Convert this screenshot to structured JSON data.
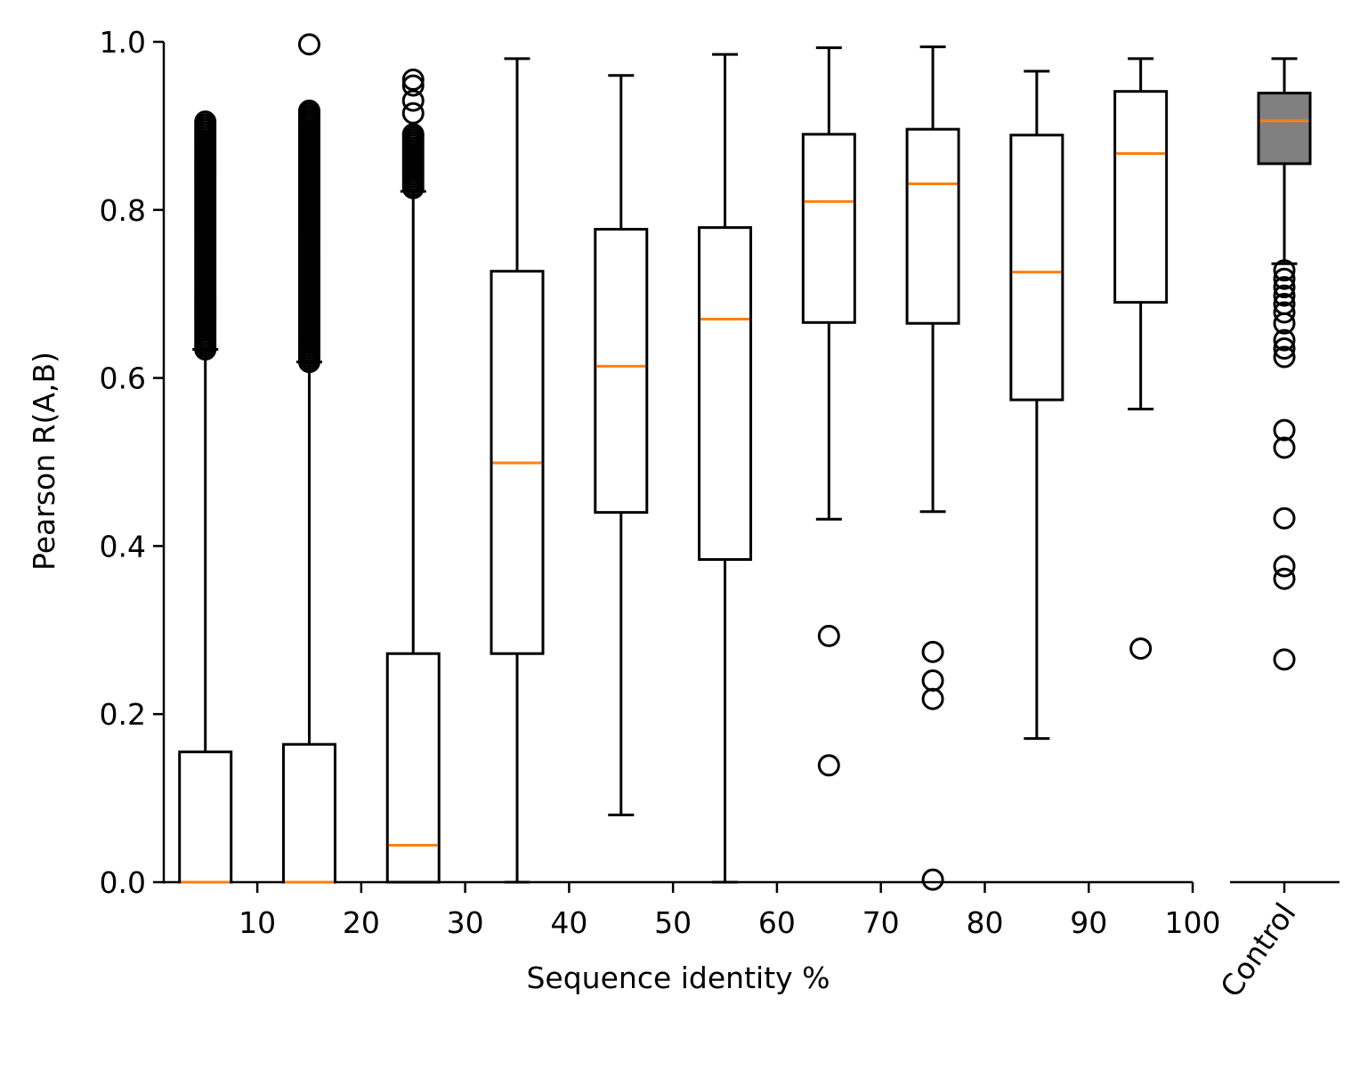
{
  "chart_data": [
    {
      "type": "box",
      "xlabel": "Sequence identity %",
      "ylabel": "Pearson R(A,B)",
      "ylim": [
        0,
        1.0
      ],
      "xlim": [
        1,
        100
      ],
      "x_ticks": [
        10,
        20,
        30,
        40,
        50,
        60,
        70,
        80,
        90,
        100
      ],
      "y_ticks": [
        0.0,
        0.2,
        0.4,
        0.6,
        0.8,
        1.0
      ],
      "y_tick_labels": [
        "0.0",
        "0.2",
        "0.4",
        "0.6",
        "0.8",
        "1.0"
      ],
      "box_fill": "#ffffff",
      "median_color": "#ff7f0e",
      "boxes": [
        {
          "x": 5,
          "whisker_low": 0.0,
          "q1": 0.0,
          "median": 0.0,
          "q3": 0.155,
          "whisker_high": 0.634,
          "outliers_dense_range": [
            0.634,
            0.905
          ]
        },
        {
          "x": 15,
          "whisker_low": 0.0,
          "q1": 0.0,
          "median": 0.0,
          "q3": 0.164,
          "whisker_high": 0.619,
          "outliers_dense_range": [
            0.619,
            0.918
          ],
          "outliers": [
            0.997
          ]
        },
        {
          "x": 25,
          "whisker_low": 0.0,
          "q1": 0.0,
          "median": 0.044,
          "q3": 0.272,
          "whisker_high": 0.822,
          "outliers_dense_range": [
            0.826,
            0.89
          ],
          "outliers": [
            0.915,
            0.93,
            0.948,
            0.955
          ]
        },
        {
          "x": 35,
          "whisker_low": 0.0,
          "q1": 0.272,
          "median": 0.499,
          "q3": 0.727,
          "whisker_high": 0.98,
          "outliers": []
        },
        {
          "x": 45,
          "whisker_low": 0.08,
          "q1": 0.44,
          "median": 0.614,
          "q3": 0.777,
          "whisker_high": 0.96,
          "outliers": []
        },
        {
          "x": 55,
          "whisker_low": 0.0,
          "q1": 0.384,
          "median": 0.67,
          "q3": 0.779,
          "whisker_high": 0.985,
          "outliers": []
        },
        {
          "x": 65,
          "whisker_low": 0.432,
          "q1": 0.666,
          "median": 0.81,
          "q3": 0.89,
          "whisker_high": 0.993,
          "outliers": [
            0.293,
            0.139
          ]
        },
        {
          "x": 75,
          "whisker_low": 0.441,
          "q1": 0.665,
          "median": 0.831,
          "q3": 0.896,
          "whisker_high": 0.994,
          "outliers": [
            0.274,
            0.24,
            0.218,
            0.003
          ]
        },
        {
          "x": 85,
          "whisker_low": 0.171,
          "q1": 0.574,
          "median": 0.726,
          "q3": 0.889,
          "whisker_high": 0.965,
          "outliers": []
        },
        {
          "x": 95,
          "whisker_low": 0.563,
          "q1": 0.69,
          "median": 0.867,
          "q3": 0.941,
          "whisker_high": 0.98,
          "outliers": [
            0.278
          ]
        }
      ]
    },
    {
      "type": "box",
      "ylim": [
        0,
        1.0
      ],
      "categories": [
        "Control"
      ],
      "box_fill": "#808080",
      "median_color": "#ff7f0e",
      "boxes": [
        {
          "label": "Control",
          "whisker_low": 0.736,
          "q1": 0.855,
          "median": 0.906,
          "q3": 0.939,
          "whisker_high": 0.98,
          "outliers": [
            0.728,
            0.718,
            0.708,
            0.698,
            0.688,
            0.678,
            0.665,
            0.645,
            0.635,
            0.625,
            0.538,
            0.517,
            0.433,
            0.376,
            0.361,
            0.265
          ]
        }
      ]
    }
  ]
}
